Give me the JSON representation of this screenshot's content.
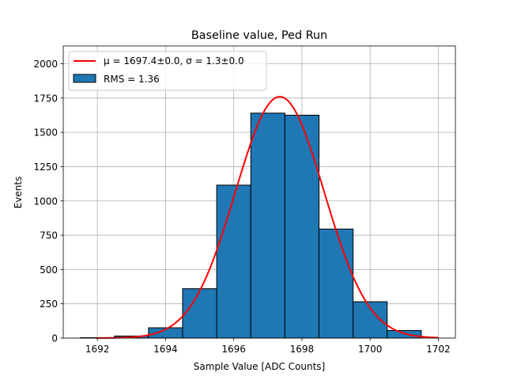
{
  "chart_data": {
    "type": "bar",
    "title": "Baseline value, Ped Run",
    "xlabel": "Sample Value [ADC Counts]",
    "ylabel": "Events",
    "xlim": [
      1691.0,
      1702.5
    ],
    "ylim": [
      0,
      2130
    ],
    "xticks": [
      1692,
      1694,
      1696,
      1698,
      1700,
      1702
    ],
    "yticks": [
      0,
      250,
      500,
      750,
      1000,
      1250,
      1500,
      1750,
      2000
    ],
    "grid": true,
    "legend_position": "upper-left",
    "bin_edges": [
      1691.5,
      1692.5,
      1693.5,
      1694.5,
      1695.5,
      1696.5,
      1697.5,
      1698.5,
      1699.5,
      1700.5,
      1701.5
    ],
    "values": [
      3,
      15,
      75,
      360,
      1115,
      1640,
      1625,
      795,
      265,
      55
    ],
    "bar_color": "#1f77b4",
    "bar_edge_color": "#000000",
    "fit": {
      "label": "μ = 1697.4±0.0, σ = 1.3±0.0",
      "mu": 1697.35,
      "sigma": 1.3,
      "amplitude": 1760,
      "x_range": [
        1692.0,
        1702.0
      ],
      "color": "#ff0000"
    },
    "histogram_label": "RMS = 1.36"
  }
}
